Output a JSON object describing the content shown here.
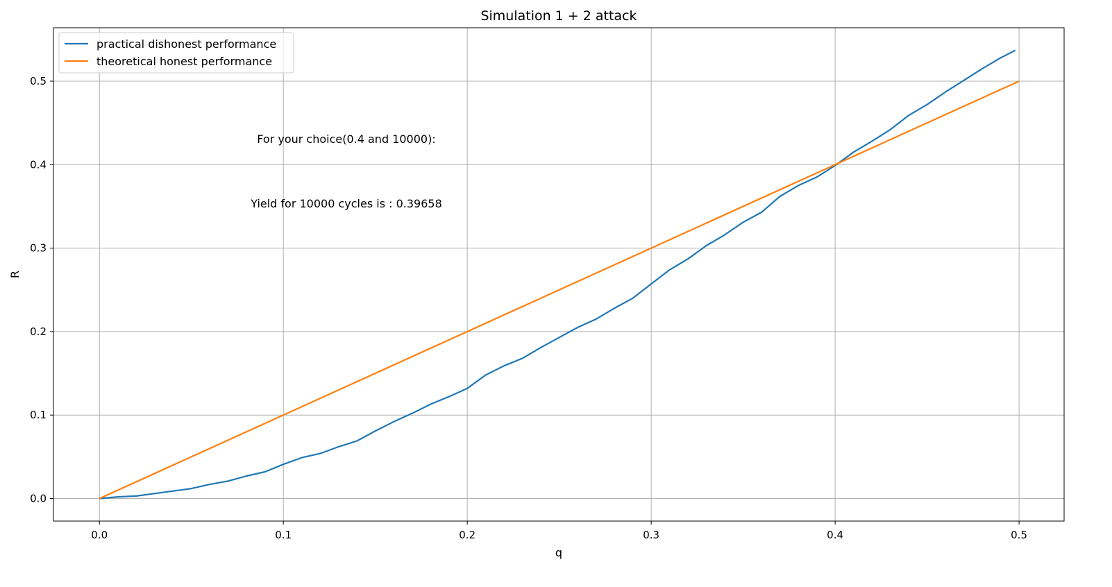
{
  "chart_data": {
    "type": "line",
    "title": "Simulation 1 + 2 attack",
    "xlabel": "q",
    "ylabel": "R",
    "xlim": [
      -0.025,
      0.5245
    ],
    "ylim": [
      -0.027,
      0.564
    ],
    "xticks": [
      0.0,
      0.1,
      0.2,
      0.3,
      0.4,
      0.5
    ],
    "xtick_labels": [
      "0.0",
      "0.1",
      "0.2",
      "0.3",
      "0.4",
      "0.5"
    ],
    "yticks": [
      0.0,
      0.1,
      0.2,
      0.3,
      0.4,
      0.5
    ],
    "ytick_labels": [
      "0.0",
      "0.1",
      "0.2",
      "0.3",
      "0.4",
      "0.5"
    ],
    "grid": true,
    "legend_position": "top-left",
    "annotations": [
      "For your choice(0.4 and 10000):",
      "Yield for 10000 cycles is : 0.39658"
    ],
    "series": [
      {
        "name": "practical dishonest performance",
        "color": "#1f77b4",
        "x": [
          0.0,
          0.01,
          0.02,
          0.03,
          0.04,
          0.05,
          0.06,
          0.07,
          0.08,
          0.09,
          0.1,
          0.11,
          0.12,
          0.13,
          0.14,
          0.15,
          0.16,
          0.17,
          0.18,
          0.19,
          0.2,
          0.21,
          0.22,
          0.23,
          0.24,
          0.25,
          0.26,
          0.27,
          0.28,
          0.29,
          0.3,
          0.31,
          0.32,
          0.33,
          0.34,
          0.35,
          0.36,
          0.37,
          0.38,
          0.39,
          0.4,
          0.41,
          0.42,
          0.43,
          0.44,
          0.45,
          0.46,
          0.47,
          0.48,
          0.49,
          0.498
        ],
        "y": [
          0.0,
          0.002,
          0.003,
          0.006,
          0.009,
          0.012,
          0.017,
          0.021,
          0.027,
          0.032,
          0.041,
          0.049,
          0.054,
          0.062,
          0.069,
          0.081,
          0.092,
          0.102,
          0.113,
          0.122,
          0.132,
          0.148,
          0.159,
          0.168,
          0.181,
          0.193,
          0.205,
          0.215,
          0.228,
          0.24,
          0.257,
          0.274,
          0.287,
          0.303,
          0.316,
          0.331,
          0.343,
          0.362,
          0.375,
          0.385,
          0.399,
          0.415,
          0.428,
          0.442,
          0.459,
          0.472,
          0.487,
          0.501,
          0.515,
          0.528,
          0.537
        ]
      },
      {
        "name": "theoretical honest performance",
        "color": "#ff7f0e",
        "x": [
          0.0,
          0.5
        ],
        "y": [
          0.0,
          0.5
        ]
      }
    ]
  }
}
